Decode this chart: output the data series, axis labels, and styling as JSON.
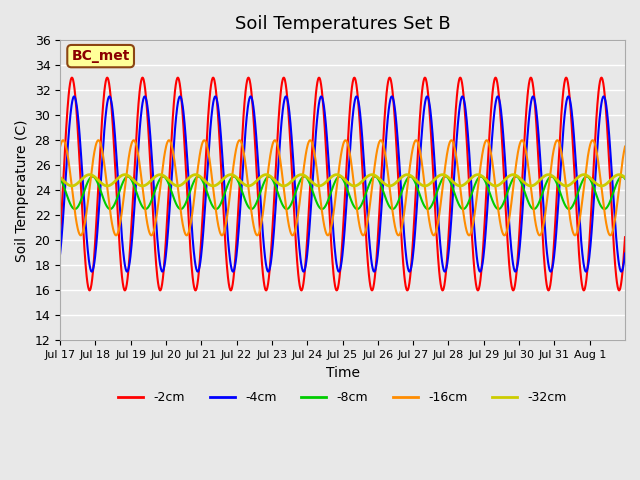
{
  "title": "Soil Temperatures Set B",
  "xlabel": "Time",
  "ylabel": "Soil Temperature (C)",
  "ylim": [
    12,
    36
  ],
  "yticks": [
    12,
    14,
    16,
    18,
    20,
    22,
    24,
    26,
    28,
    30,
    32,
    34,
    36
  ],
  "xtick_labels": [
    "Jul 17",
    "Jul 18",
    "Jul 19",
    "Jul 20",
    "Jul 21",
    "Jul 22",
    "Jul 23",
    "Jul 24",
    "Jul 25",
    "Jul 26",
    "Jul 27",
    "Jul 28",
    "Jul 29",
    "Jul 30",
    "Jul 31",
    "Aug 1"
  ],
  "series_colors": [
    "#FF0000",
    "#0000FF",
    "#00CC00",
    "#FF8C00",
    "#CCCC00"
  ],
  "series_labels": [
    "-2cm",
    "-4cm",
    "-8cm",
    "-16cm",
    "-32cm"
  ],
  "series_linewidths": [
    1.5,
    1.5,
    1.5,
    1.5,
    2.0
  ],
  "background_color": "#E8E8E8",
  "plot_bg_color": "#E8E8E8",
  "grid_color": "#FFFFFF",
  "label_box_color": "#FFFF99",
  "label_box_edge": "#8B4513",
  "label_text": "BC_met",
  "label_text_color": "#8B0000",
  "depths_amplitude": [
    8.5,
    7.0,
    1.3,
    3.8,
    0.45
  ],
  "depths_mean": [
    24.5,
    24.5,
    23.8,
    24.2,
    24.8
  ],
  "depths_phase_hours": [
    -2.0,
    -3.5,
    8.0,
    4.0,
    10.0
  ],
  "n_days": 16,
  "figsize": [
    6.4,
    4.8
  ],
  "dpi": 100
}
